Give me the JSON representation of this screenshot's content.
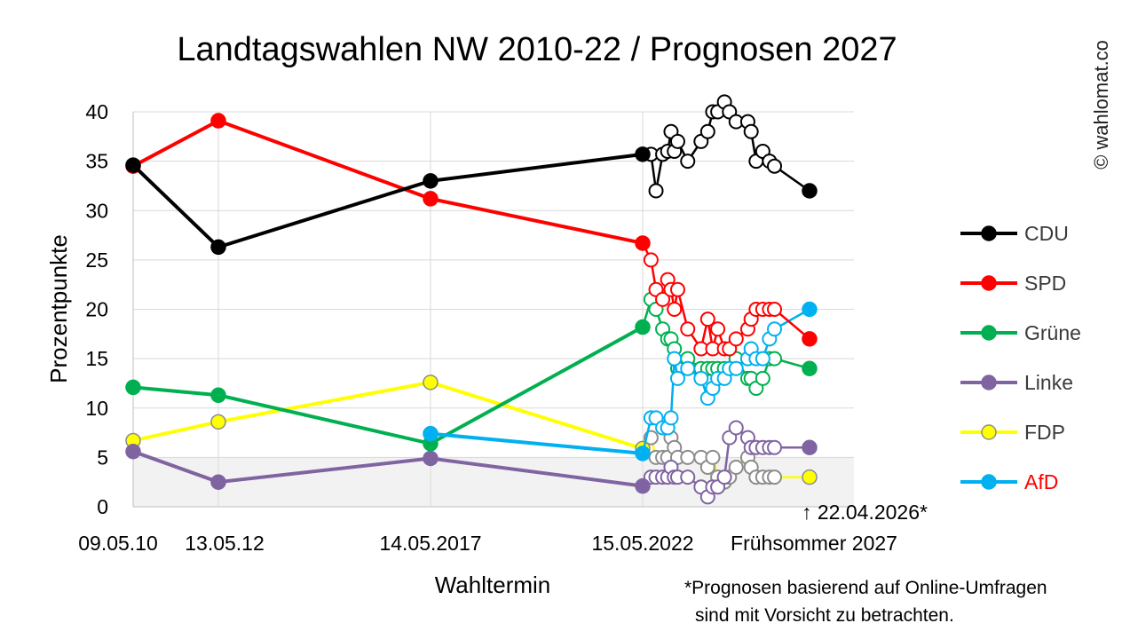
{
  "copyright": "© wahlomat.co",
  "note_lines": [
    "*Prognosen basierend auf Online-Umfragen",
    "sind mit Vorsicht zu betrachten."
  ],
  "marker_annotation": "↑ 22.04.2026*",
  "chart_data": {
    "type": "line",
    "title": "Landtagswahlen NW 2010-22 / Prognosen 2027",
    "xlabel": "Wahltermin",
    "ylabel": "Prozentpunkte",
    "ylim": [
      0,
      40
    ],
    "yticks": [
      0,
      5,
      10,
      15,
      20,
      25,
      30,
      35,
      40
    ],
    "grid": true,
    "shaded_band": [
      0,
      5
    ],
    "legend_position": "right",
    "xtick_labels": [
      {
        "label": "09.05.10",
        "x": 0
      },
      {
        "label": "13.05.12",
        "x": 1
      },
      {
        "label": "14.05.2017",
        "x": 2
      },
      {
        "label": "15.05.2022",
        "x": 3
      },
      {
        "label": "Frühsommer 2027",
        "x": 4
      }
    ],
    "poll_x": [
      3.05,
      3.08,
      3.12,
      3.15,
      3.17,
      3.19,
      3.21,
      3.27,
      3.35,
      3.39,
      3.42,
      3.45,
      3.49,
      3.52,
      3.56,
      3.63,
      3.65,
      3.68,
      3.72,
      3.76,
      3.79
    ],
    "series": [
      {
        "name": "CDU",
        "color": "#000000",
        "label_color": "#3a3a3a",
        "outline": "#000000",
        "election": [
          34.6,
          26.3,
          33.0,
          35.7
        ],
        "polls": [
          35.7,
          32,
          35.7,
          36,
          38,
          36,
          37,
          35,
          37,
          38,
          40,
          40,
          41,
          40,
          39,
          39,
          38,
          35,
          36,
          35,
          34.5
        ],
        "latest": 32
      },
      {
        "name": "SPD",
        "color": "#ff0000",
        "label_color": "#3a3a3a",
        "outline": "#ff0000",
        "election": [
          34.5,
          39.1,
          31.2,
          26.7
        ],
        "polls": [
          25,
          22,
          21,
          23,
          22,
          20,
          22,
          18,
          16,
          19,
          16,
          18,
          16,
          16,
          17,
          18,
          19,
          20,
          20,
          20,
          20
        ],
        "latest": 17
      },
      {
        "name": "Grüne",
        "color": "#00b050",
        "label_color": "#3a3a3a",
        "outline": "#00b050",
        "election": [
          12.1,
          11.3,
          6.4,
          18.2
        ],
        "polls": [
          21,
          20,
          18,
          17,
          17,
          16,
          14,
          15,
          14,
          14,
          14,
          14,
          14,
          14,
          15,
          13,
          13,
          12,
          13,
          15,
          15
        ],
        "latest": 14
      },
      {
        "name": "Linke",
        "color": "#8064a2",
        "label_color": "#3a3a3a",
        "outline": "#8064a2",
        "election": [
          5.6,
          2.5,
          4.9,
          2.1
        ],
        "polls": [
          3,
          3,
          3,
          3,
          4,
          3,
          3,
          3,
          2,
          1,
          2,
          2,
          3,
          7,
          8,
          7,
          6,
          6,
          6,
          6,
          6
        ],
        "latest": 6
      },
      {
        "name": "FDP",
        "color": "#ffff00",
        "label_color": "#3a3a3a",
        "outline": "#8c8c8c",
        "election": [
          6.7,
          8.6,
          12.6,
          5.9
        ],
        "polls": [
          7,
          5,
          5,
          5,
          7,
          6,
          5,
          5,
          5,
          4,
          5,
          3,
          2.5,
          3,
          4,
          5,
          4,
          3,
          3,
          3,
          3
        ],
        "latest": 3
      },
      {
        "name": "AfD",
        "color": "#00b0f0",
        "label_color": "#ff0000",
        "outline": "#00b0f0",
        "election": [
          null,
          null,
          7.4,
          5.4
        ],
        "polls": [
          9,
          9,
          8,
          8,
          9,
          15,
          13,
          14,
          13,
          11,
          12,
          13,
          13,
          14,
          14,
          15,
          16,
          15,
          15,
          17,
          18
        ],
        "latest": 20
      }
    ]
  }
}
